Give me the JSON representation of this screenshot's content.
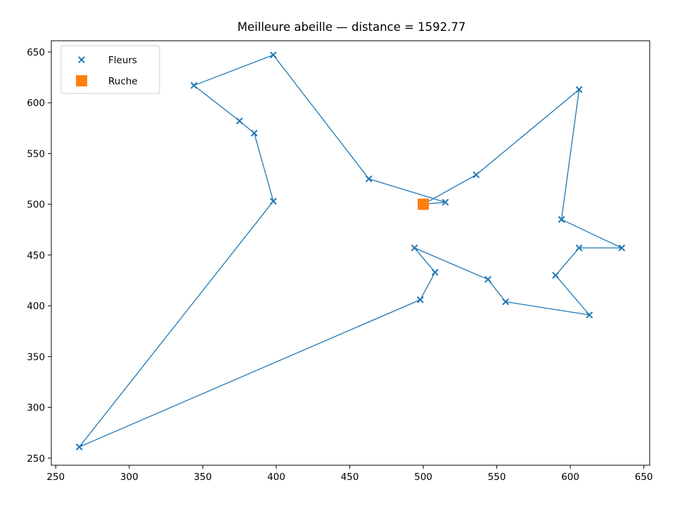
{
  "chart_data": {
    "type": "scatter",
    "title": "Meilleure abeille — distance = 1592.77",
    "xlabel": "",
    "ylabel": "",
    "xlim": [
      247,
      654
    ],
    "ylim": [
      243,
      661
    ],
    "xticks": [
      250,
      300,
      350,
      400,
      450,
      500,
      550,
      600,
      650
    ],
    "yticks": [
      250,
      300,
      350,
      400,
      450,
      500,
      550,
      600,
      650
    ],
    "grid": false,
    "legend_position": "top-left",
    "series": [
      {
        "name": "Fleurs",
        "marker": "x",
        "color": "#1f77b4",
        "points": [
          [
            515,
            502
          ],
          [
            536,
            529
          ],
          [
            606,
            613
          ],
          [
            594,
            485
          ],
          [
            635,
            457
          ],
          [
            606,
            457
          ],
          [
            590,
            430
          ],
          [
            613,
            391
          ],
          [
            556,
            404
          ],
          [
            544,
            426
          ],
          [
            494,
            457
          ],
          [
            508,
            433
          ],
          [
            498,
            406
          ],
          [
            266,
            261
          ],
          [
            398,
            503
          ],
          [
            385,
            570
          ],
          [
            375,
            582
          ],
          [
            344,
            617
          ],
          [
            398,
            647
          ],
          [
            463,
            525
          ]
        ]
      },
      {
        "name": "Ruche",
        "marker": "square",
        "color": "#ff7f0e",
        "points": [
          [
            500,
            500
          ]
        ]
      }
    ],
    "route": {
      "color": "#1f77b4",
      "points": [
        [
          500,
          500
        ],
        [
          515,
          502
        ],
        [
          463,
          525
        ],
        [
          398,
          647
        ],
        [
          344,
          617
        ],
        [
          375,
          582
        ],
        [
          385,
          570
        ],
        [
          398,
          503
        ],
        [
          266,
          261
        ],
        [
          498,
          406
        ],
        [
          508,
          433
        ],
        [
          494,
          457
        ],
        [
          544,
          426
        ],
        [
          556,
          404
        ],
        [
          613,
          391
        ],
        [
          590,
          430
        ],
        [
          606,
          457
        ],
        [
          635,
          457
        ],
        [
          594,
          485
        ],
        [
          606,
          613
        ],
        [
          536,
          529
        ],
        [
          500,
          500
        ]
      ]
    }
  }
}
